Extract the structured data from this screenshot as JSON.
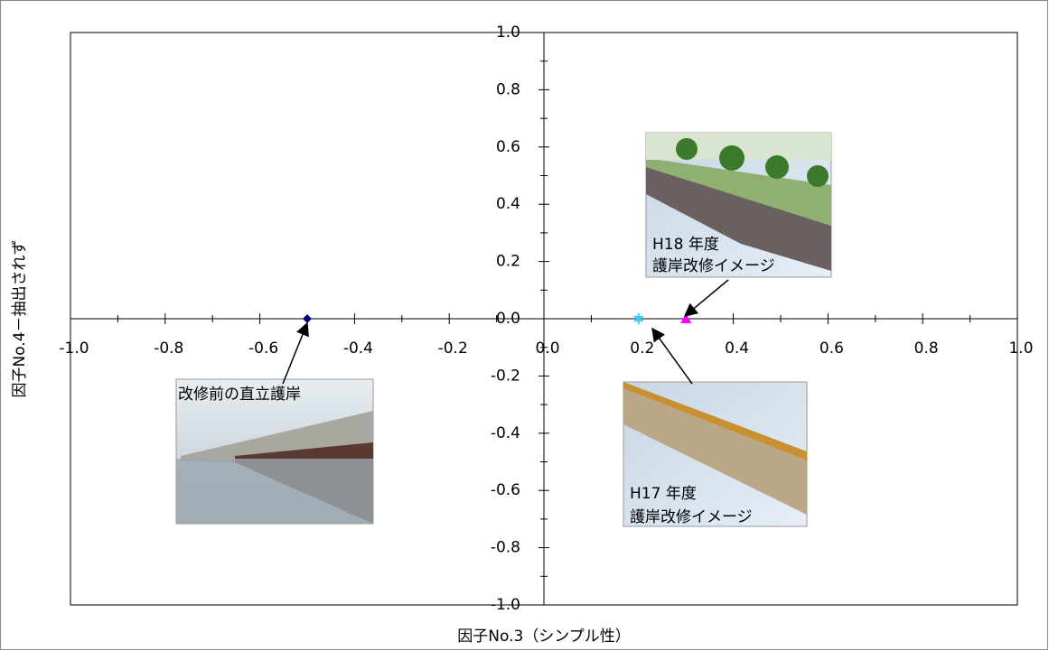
{
  "chart_data": {
    "type": "scatter",
    "xlabel": "因子No.3（シンプル性）",
    "ylabel": "因子No.4－抽出されず",
    "xlim": [
      -1,
      1
    ],
    "ylim": [
      -1,
      1
    ],
    "xticks": [
      {
        "value": -1,
        "label": "-1.0"
      },
      -0.8,
      -0.6,
      -0.4,
      -0.2,
      {
        "value": 0,
        "label": "0.0"
      },
      0.2,
      0.4,
      0.6,
      0.8,
      {
        "value": 1,
        "label": "1.0"
      }
    ],
    "yticks": [
      {
        "value": -1,
        "label": "-1.0"
      },
      -0.8,
      -0.6,
      -0.4,
      -0.2,
      {
        "value": 0,
        "label": "0.0"
      },
      0.2,
      0.4,
      0.6,
      0.8,
      {
        "value": 1,
        "label": "1.0"
      }
    ],
    "xminorticks": [
      -0.9,
      -0.7,
      -0.5,
      -0.3,
      -0.1,
      0.1,
      0.3,
      0.5,
      0.7,
      0.9
    ],
    "yminorticks": [
      -0.9,
      -0.7,
      -0.5,
      -0.3,
      -0.1,
      0.1,
      0.3,
      0.5,
      0.7,
      0.9
    ],
    "series": [
      {
        "color": "#000080",
        "marker": "diamond",
        "x": [
          -0.5
        ],
        "values": [
          0
        ]
      },
      {
        "color": "#33ccff",
        "marker": "star",
        "x": [
          0.2
        ],
        "values": [
          0
        ]
      },
      {
        "color": "#ff00ff",
        "marker": "triangle",
        "x": [
          0.3
        ],
        "values": [
          0
        ]
      }
    ],
    "annotations": [
      {
        "lines": [
          "改修前の直立護岸"
        ]
      },
      {
        "lines": [
          "H18 年度",
          "護岸改修イメージ"
        ]
      },
      {
        "lines": [
          "H17 年度",
          "護岸改修イメージ"
        ]
      }
    ]
  }
}
